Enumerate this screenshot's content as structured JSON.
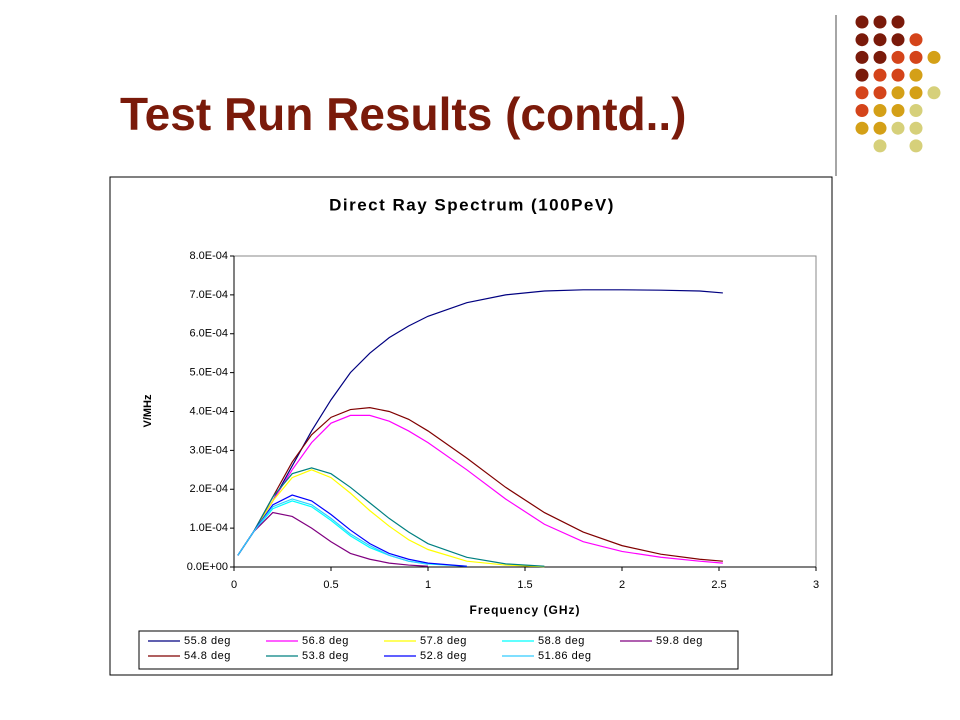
{
  "slide_title": "Test Run Results (contd..)",
  "chart_data": {
    "type": "line",
    "title": "Direct Ray Spectrum (100PeV)",
    "x_label": "Frequency (GHz)",
    "y_label": "V/MHz",
    "x": [
      0.02,
      0.1,
      0.2,
      0.3,
      0.4,
      0.5,
      0.6,
      0.7,
      0.8,
      0.9,
      1.0,
      1.2,
      1.4,
      1.6,
      1.8,
      2.0,
      2.2,
      2.4,
      2.52
    ],
    "xlim": [
      0,
      3
    ],
    "xticks": [
      0,
      0.5,
      1,
      1.5,
      2,
      2.5,
      3
    ],
    "ylim": [
      0,
      0.0008
    ],
    "yticks": [
      {
        "value": 0,
        "label": "0.0E+00"
      },
      {
        "value": 0.0001,
        "label": "1.0E-04"
      },
      {
        "value": 0.0002,
        "label": "2.0E-04"
      },
      {
        "value": 0.0003,
        "label": "3.0E-04"
      },
      {
        "value": 0.0004,
        "label": "4.0E-04"
      },
      {
        "value": 0.0005,
        "label": "5.0E-04"
      },
      {
        "value": 0.0006,
        "label": "6.0E-04"
      },
      {
        "value": 0.0007,
        "label": "7.0E-04"
      },
      {
        "value": 0.0008,
        "label": "8.0E-04"
      }
    ],
    "grid": false,
    "legend": "bottom",
    "series": [
      {
        "name": "55.8 deg",
        "color": "#000080",
        "values": [
          3e-05,
          9e-05,
          0.00017,
          0.00026,
          0.00035,
          0.00043,
          0.0005,
          0.00055,
          0.00059,
          0.00062,
          0.000645,
          0.00068,
          0.0007,
          0.00071,
          0.000713,
          0.000713,
          0.000712,
          0.00071,
          0.000705
        ]
      },
      {
        "name": "56.8 deg",
        "color": "#ff00ff",
        "values": [
          3e-05,
          9e-05,
          0.00017,
          0.00025,
          0.00032,
          0.00037,
          0.00039,
          0.00039,
          0.000375,
          0.00035,
          0.00032,
          0.00025,
          0.000175,
          0.00011,
          6.5e-05,
          4e-05,
          2.5e-05,
          1.5e-05,
          1e-05
        ]
      },
      {
        "name": "57.8 deg",
        "color": "#ffff00",
        "values": [
          3e-05,
          9e-05,
          0.00017,
          0.00023,
          0.00025,
          0.00023,
          0.00019,
          0.000145,
          0.000105,
          7e-05,
          4.5e-05,
          1.5e-05,
          5e-06,
          1e-06,
          null,
          null,
          null,
          null,
          null
        ]
      },
      {
        "name": "58.8 deg",
        "color": "#00ffff",
        "values": [
          3e-05,
          9e-05,
          0.00015,
          0.00017,
          0.000155,
          0.00012,
          8e-05,
          5e-05,
          3e-05,
          1.5e-05,
          8e-06,
          2e-06,
          null,
          null,
          null,
          null,
          null,
          null,
          null
        ]
      },
      {
        "name": "59.8 deg",
        "color": "#800080",
        "values": [
          3e-05,
          9e-05,
          0.00014,
          0.00013,
          0.0001,
          6.5e-05,
          3.5e-05,
          2e-05,
          1e-05,
          5e-06,
          2e-06,
          null,
          null,
          null,
          null,
          null,
          null,
          null,
          null
        ]
      },
      {
        "name": "54.8 deg",
        "color": "#800000",
        "values": [
          3e-05,
          9e-05,
          0.00018,
          0.00027,
          0.00034,
          0.000385,
          0.000405,
          0.00041,
          0.0004,
          0.00038,
          0.00035,
          0.00028,
          0.000205,
          0.00014,
          9e-05,
          5.5e-05,
          3.3e-05,
          2e-05,
          1.5e-05
        ]
      },
      {
        "name": "53.8 deg",
        "color": "#008080",
        "values": [
          3e-05,
          9e-05,
          0.00018,
          0.00024,
          0.000255,
          0.00024,
          0.000205,
          0.000165,
          0.000125,
          9e-05,
          6e-05,
          2.5e-05,
          8e-06,
          2e-06,
          null,
          null,
          null,
          null,
          null
        ]
      },
      {
        "name": "52.8 deg",
        "color": "#0000ff",
        "values": [
          3e-05,
          9e-05,
          0.00016,
          0.000185,
          0.00017,
          0.000135,
          9.5e-05,
          6e-05,
          3.5e-05,
          2e-05,
          1e-05,
          2e-06,
          null,
          null,
          null,
          null,
          null,
          null,
          null
        ]
      },
      {
        "name": "51.86 deg",
        "color": "#33ccff",
        "values": [
          3e-05,
          9e-05,
          0.000155,
          0.000175,
          0.00016,
          0.000125,
          8.5e-05,
          5.5e-05,
          3e-05,
          1.5e-05,
          7e-06,
          null,
          null,
          null,
          null,
          null,
          null,
          null,
          null
        ]
      }
    ]
  }
}
